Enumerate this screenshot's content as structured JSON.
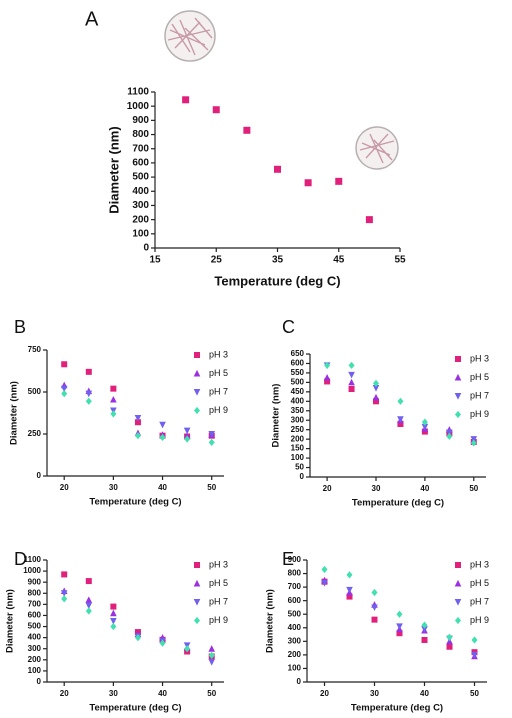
{
  "chart_data": [
    {
      "type": "scatter",
      "title": "A",
      "xlabel": "Temperature (deg C)",
      "ylabel": "Diameter (nm)",
      "x": [
        20,
        25,
        30,
        35,
        40,
        45,
        50
      ],
      "values": [
        1045,
        975,
        830,
        555,
        460,
        470,
        200
      ],
      "color": "#e0207a",
      "marker": "square",
      "xlim": [
        15,
        55
      ],
      "xticks": [
        15,
        25,
        35,
        45,
        55
      ],
      "ylim": [
        0,
        1100
      ],
      "yticks": [
        0,
        100,
        200,
        300,
        400,
        500,
        600,
        700,
        800,
        900,
        1000,
        1100
      ]
    },
    {
      "type": "scatter",
      "title": "B",
      "xlabel": "Temperature (deg C)",
      "ylabel": "Diameter (nm)",
      "x": [
        20,
        25,
        30,
        35,
        40,
        45,
        50
      ],
      "series": [
        {
          "name": "pH 3",
          "color": "#e0207a",
          "marker": "square",
          "values": [
            665,
            620,
            520,
            320,
            240,
            235,
            240
          ]
        },
        {
          "name": "pH 5",
          "color": "#9b30e0",
          "marker": "triangle-up",
          "values": [
            540,
            505,
            455,
            255,
            245,
            240,
            245
          ]
        },
        {
          "name": "pH 7",
          "color": "#7060f0",
          "marker": "triangle-down",
          "values": [
            520,
            490,
            390,
            345,
            305,
            270,
            250
          ]
        },
        {
          "name": "pH 9",
          "color": "#40e0b0",
          "marker": "diamond",
          "values": [
            490,
            445,
            370,
            240,
            230,
            220,
            200
          ]
        }
      ],
      "xlim": [
        16.5,
        52.5
      ],
      "xticks": [
        20,
        30,
        40,
        50
      ],
      "ylim": [
        0,
        750
      ],
      "yticks": [
        0,
        250,
        500,
        750
      ]
    },
    {
      "type": "scatter",
      "title": "C",
      "xlabel": "Temperature (deg C)",
      "ylabel": "Diameter (nm)",
      "x": [
        20,
        25,
        30,
        35,
        40,
        45,
        50
      ],
      "series": [
        {
          "name": "pH 3",
          "color": "#e0207a",
          "marker": "square",
          "values": [
            505,
            465,
            400,
            280,
            240,
            230,
            185
          ]
        },
        {
          "name": "pH 5",
          "color": "#9b30e0",
          "marker": "triangle-up",
          "values": [
            525,
            500,
            420,
            300,
            255,
            250,
            195
          ]
        },
        {
          "name": "pH 7",
          "color": "#7060f0",
          "marker": "triangle-down",
          "values": [
            590,
            540,
            470,
            305,
            265,
            235,
            200
          ]
        },
        {
          "name": "pH 9",
          "color": "#40e0b0",
          "marker": "diamond",
          "values": [
            590,
            590,
            495,
            400,
            290,
            215,
            180
          ]
        }
      ],
      "xlim": [
        16.5,
        52.5
      ],
      "xticks": [
        20,
        30,
        40,
        50
      ],
      "ylim": [
        0,
        650
      ],
      "yticks": [
        0,
        50,
        100,
        150,
        200,
        250,
        300,
        350,
        400,
        450,
        500,
        550,
        600,
        650
      ]
    },
    {
      "type": "scatter",
      "title": "D",
      "xlabel": "Temperature (deg C)",
      "ylabel": "Diameter (nm)",
      "x": [
        20,
        25,
        30,
        35,
        40,
        45,
        50
      ],
      "series": [
        {
          "name": "pH 3",
          "color": "#e0207a",
          "marker": "square",
          "values": [
            970,
            910,
            680,
            450,
            380,
            275,
            230
          ]
        },
        {
          "name": "pH 5",
          "color": "#9b30e0",
          "marker": "triangle-up",
          "values": [
            820,
            740,
            620,
            430,
            400,
            310,
            300
          ]
        },
        {
          "name": "pH 7",
          "color": "#7060f0",
          "marker": "triangle-down",
          "values": [
            800,
            690,
            550,
            410,
            370,
            330,
            180
          ]
        },
        {
          "name": "pH 9",
          "color": "#40e0b0",
          "marker": "diamond",
          "values": [
            750,
            640,
            500,
            400,
            350,
            300,
            240
          ]
        }
      ],
      "xlim": [
        16.5,
        52.5
      ],
      "xticks": [
        20,
        30,
        40,
        50
      ],
      "ylim": [
        0,
        1100
      ],
      "yticks": [
        0,
        100,
        200,
        300,
        400,
        500,
        600,
        700,
        800,
        900,
        1000,
        1100
      ]
    },
    {
      "type": "scatter",
      "title": "E",
      "xlabel": "Temperature (deg C)",
      "ylabel": "Diameter (nm)",
      "x": [
        20,
        25,
        30,
        35,
        40,
        45,
        50
      ],
      "series": [
        {
          "name": "pH 3",
          "color": "#e0207a",
          "marker": "square",
          "values": [
            740,
            630,
            460,
            360,
            310,
            260,
            220
          ]
        },
        {
          "name": "pH 5",
          "color": "#9b30e0",
          "marker": "triangle-up",
          "values": [
            750,
            660,
            570,
            390,
            380,
            300,
            190
          ]
        },
        {
          "name": "pH 7",
          "color": "#7060f0",
          "marker": "triangle-down",
          "values": [
            730,
            680,
            550,
            410,
            390,
            320,
            200
          ]
        },
        {
          "name": "pH 9",
          "color": "#40e0b0",
          "marker": "diamond",
          "values": [
            830,
            790,
            660,
            500,
            420,
            330,
            310
          ]
        }
      ],
      "xlim": [
        16.5,
        52.5
      ],
      "xticks": [
        20,
        30,
        40,
        50
      ],
      "ylim": [
        0,
        900
      ],
      "yticks": [
        0,
        100,
        200,
        300,
        400,
        500,
        600,
        700,
        800,
        900
      ]
    }
  ]
}
